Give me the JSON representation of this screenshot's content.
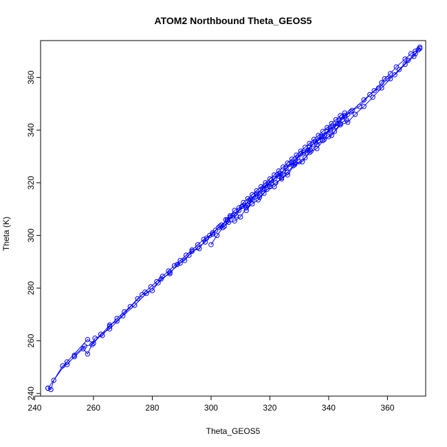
{
  "chart_data": {
    "type": "scatter",
    "title": "ATOM2 Northbound Theta_GEOS5",
    "xlabel": "Theta_GEOS5",
    "ylabel": "Theta (K)",
    "xlim": [
      242,
      373
    ],
    "ylim": [
      239,
      374
    ],
    "xticks": [
      240,
      260,
      280,
      300,
      320,
      340,
      360
    ],
    "yticks": [
      240,
      260,
      280,
      300,
      320,
      340,
      360
    ],
    "grid": false,
    "legend": "none",
    "color": "#0000ff",
    "marker": "open-circle",
    "connected": true,
    "series": [
      {
        "x": [
          244.5,
          245.5,
          246.5,
          249.5,
          251,
          253.5,
          256.5,
          258,
          260.5,
          263,
          265.5,
          268,
          270.5,
          272.5,
          275,
          277.5,
          279.5,
          281.5,
          283.5,
          285.5,
          287.5,
          289.5,
          291.5,
          293.5,
          295.5,
          297.5,
          299.5,
          301.5,
          303.5,
          305.5,
          307.5,
          309.5,
          311.5,
          313.5,
          315.5,
          317.5,
          319.5,
          321.5,
          323.5,
          325.5,
          327.5,
          329.5,
          331.5,
          333.5,
          335.5,
          337.5,
          339.5,
          341.5,
          343.5,
          345.5,
          347.5,
          352,
          355.5,
          358,
          359,
          361,
          363,
          366,
          368,
          369.5,
          370.5,
          371
        ],
        "y": [
          242,
          241.5,
          245,
          250.5,
          251,
          254,
          257,
          255,
          261,
          262,
          265.5,
          268.5,
          271,
          273,
          276,
          278.5,
          280.5,
          282.5,
          284.5,
          286.5,
          288.5,
          290.5,
          292.5,
          294.5,
          296.5,
          298.5,
          300,
          302,
          304,
          305.5,
          307.5,
          309.5,
          311.5,
          313.5,
          315.5,
          317.5,
          319.5,
          321.5,
          323.5,
          325.5,
          327.5,
          329.5,
          331.5,
          333.5,
          335.5,
          337.5,
          339.5,
          341.5,
          343.5,
          345.5,
          347,
          351.5,
          355,
          358,
          359.5,
          361.5,
          364,
          367,
          369,
          370,
          370.5,
          371.5
        ]
      },
      {
        "x": [
          244.5,
          251,
          258,
          260,
          265.5,
          268,
          276.5,
          280,
          283,
          286,
          288.5,
          291,
          293.5,
          296,
          298.5,
          300.5,
          302.5,
          304.5,
          306.5,
          308.5,
          310.5,
          312.5,
          314.5,
          316.5,
          318.5,
          320.5,
          322.5,
          324.5,
          326.5,
          328.5,
          330.5,
          332.5,
          334.5,
          336.5,
          338.5,
          340.5,
          342.5,
          344.5,
          346.5,
          348,
          350.5,
          354,
          357,
          360,
          362.5,
          366,
          369,
          370.5,
          371
        ],
        "y": [
          242,
          252,
          260.5,
          259,
          266,
          267.5,
          277.5,
          279,
          283.5,
          285.5,
          289,
          290.5,
          294,
          295,
          299,
          300.5,
          303,
          303.5,
          307,
          307.5,
          311,
          311.5,
          315,
          315.5,
          319,
          319.5,
          323,
          323,
          327,
          327.5,
          331,
          331.5,
          334.5,
          336,
          338,
          340.5,
          341.5,
          345,
          346,
          347.5,
          349,
          353.5,
          356,
          359.5,
          361,
          365,
          368,
          370.5,
          371
        ]
      },
      {
        "x": [
          253.5,
          257,
          259.5,
          262.5,
          265.5,
          270,
          274,
          278,
          282,
          286,
          289.5,
          292.5,
          295.5,
          298,
          300.5,
          303,
          305.5,
          308,
          310.5,
          313,
          315.5,
          318,
          320.5,
          323,
          325.5,
          328,
          330.5,
          333,
          335.5,
          338,
          340.5,
          343,
          345.5,
          347.5
        ],
        "y": [
          254.5,
          258,
          258.5,
          262.5,
          264.5,
          269.5,
          273.5,
          278,
          282,
          286,
          289.5,
          292.5,
          295.5,
          297.5,
          301,
          303.5,
          306,
          308,
          311,
          313,
          316,
          318,
          321,
          322.5,
          325.5,
          328,
          331,
          332.5,
          335.5,
          337.5,
          340,
          342.5,
          345,
          347
        ]
      },
      {
        "x": [
          300,
          302,
          304,
          306,
          308,
          310,
          312,
          314,
          316,
          318,
          320,
          322,
          324,
          326,
          328,
          330,
          332,
          334,
          336,
          338,
          340,
          342,
          344,
          346
        ],
        "y": [
          296.5,
          300,
          303,
          305,
          305.5,
          307,
          310.5,
          312,
          313.5,
          316,
          318.5,
          320,
          321.5,
          324,
          326.5,
          328,
          329.5,
          332,
          334.5,
          336,
          337.5,
          339.5,
          342.5,
          344
        ]
      },
      {
        "x": [
          312,
          314,
          316.5,
          319,
          321.5,
          324,
          326,
          328.5,
          331,
          333.5,
          336,
          338.5,
          341,
          344,
          346.5,
          349,
          352,
          355,
          358,
          361,
          364,
          367,
          369.5
        ],
        "y": [
          309.5,
          313.5,
          314.5,
          317.5,
          318.5,
          322,
          323,
          327,
          328,
          331.5,
          333,
          336.5,
          338,
          342,
          343,
          346,
          349,
          352.5,
          356,
          359.5,
          363,
          366.5,
          369
        ]
      },
      {
        "x": [
          305,
          306.5,
          308,
          309.5,
          311,
          312.5,
          314,
          315.5,
          317,
          318.5,
          320,
          321.5,
          323,
          324.5,
          326,
          327.5,
          329,
          330.5,
          332,
          333.5,
          335,
          336.5,
          338,
          339.5,
          341,
          342.5,
          344,
          345.5
        ],
        "y": [
          306,
          307.5,
          309.5,
          310.5,
          312.5,
          314,
          315.5,
          317,
          318.5,
          320,
          321.5,
          323,
          324.5,
          326,
          327.5,
          329,
          330.5,
          332,
          333.5,
          335,
          336.5,
          338,
          339.5,
          341,
          342.5,
          344,
          345.5,
          346.5
        ]
      }
    ]
  }
}
